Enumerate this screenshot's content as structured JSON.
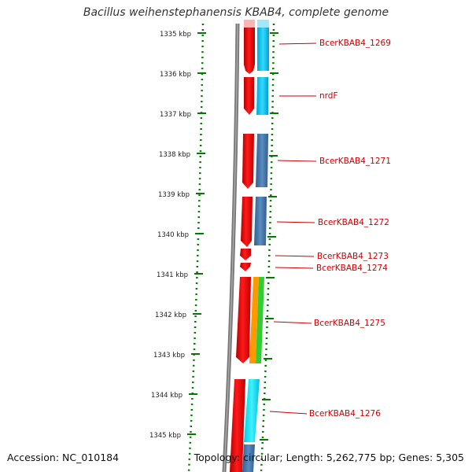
{
  "title": "Bacillus weihenstephanensis KBAB4, complete genome",
  "ruler": {
    "ticks": [
      "1335 kbp",
      "1336 kbp",
      "1337 kbp",
      "1338 kbp",
      "1339 kbp",
      "1340 kbp",
      "1341 kbp",
      "1342 kbp",
      "1343 kbp",
      "1344 kbp",
      "1345 kbp"
    ]
  },
  "genes": [
    {
      "label": "BcerKBAB4_1269"
    },
    {
      "label": "nrdF"
    },
    {
      "label": "BcerKBAB4_1271"
    },
    {
      "label": "BcerKBAB4_1272"
    },
    {
      "label": "BcerKBAB4_1273"
    },
    {
      "label": "BcerKBAB4_1274"
    },
    {
      "label": "BcerKBAB4_1275"
    },
    {
      "label": "BcerKBAB4_1276"
    }
  ],
  "footer": {
    "accession": "Accession: NC_010184",
    "topology": "Topology: circular; Length: 5,262,775 bp; Genes: 5,305"
  },
  "colors": {
    "forward_gene": "#ff0000",
    "cds_blue": "#4a7fb5",
    "cds_cyan": "#00ccff",
    "cds_orange": "#ff9900",
    "cds_green": "#33cc33",
    "ruler": "#007a00",
    "backbone": "#777777",
    "label": "#cc0000"
  }
}
